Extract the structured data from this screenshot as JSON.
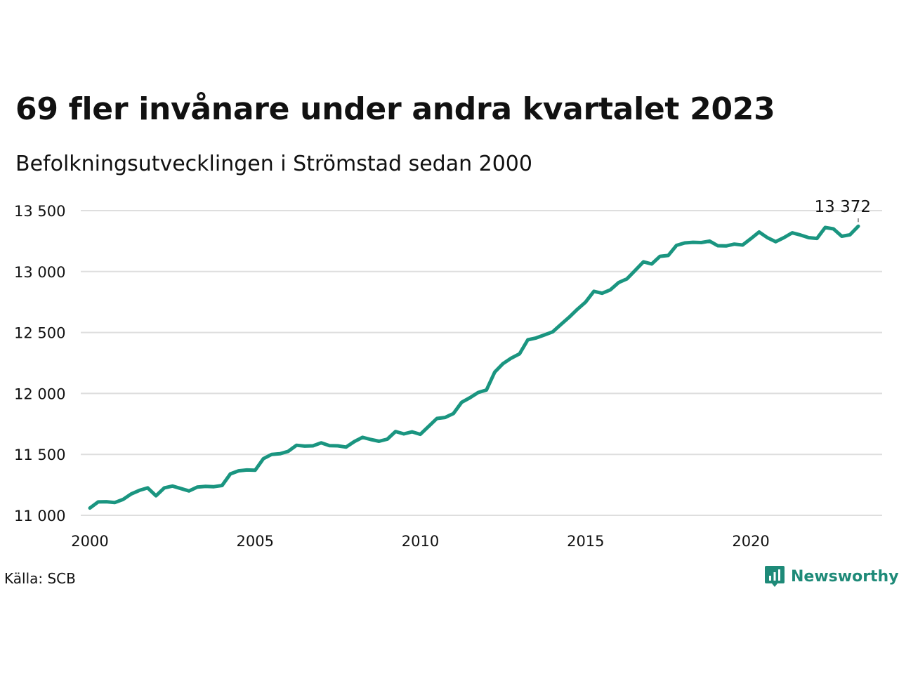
{
  "header": {
    "title": "69 fler invånare under andra kvartalet 2023",
    "subtitle": "Befolkningsutvecklingen i Strömstad sedan 2000"
  },
  "footer": {
    "source": "Källa: SCB",
    "brand": "Newsworthy"
  },
  "colors": {
    "line": "#1a9580",
    "grid": "#dedede",
    "brand": "#1e8a78"
  },
  "chart_data": {
    "type": "line",
    "title": "69 fler invånare under andra kvartalet 2023",
    "subtitle": "Befolkningsutvecklingen i Strömstad sedan 2000",
    "xlabel": "",
    "ylabel": "",
    "xlim": [
      2000,
      2024.2
    ],
    "ylim": [
      11000,
      13500
    ],
    "x_ticks": [
      2000,
      2005,
      2010,
      2015,
      2020
    ],
    "x_tick_labels": [
      "2000",
      "2005",
      "2010",
      "2015",
      "2020"
    ],
    "y_ticks": [
      11000,
      11500,
      12000,
      12500,
      13000,
      13500
    ],
    "y_tick_labels": [
      "11 000",
      "11 500",
      "12 000",
      "12 500",
      "13 000",
      "13 500"
    ],
    "grid": true,
    "end_label": "13 372",
    "series": [
      {
        "x": [
          2000.0,
          2000.25,
          2000.5,
          2000.75,
          2001.0,
          2001.25,
          2001.5,
          2001.75,
          2002.0,
          2002.25,
          2002.5,
          2002.75,
          2003.0,
          2003.25,
          2003.5,
          2003.75,
          2004.0,
          2004.25,
          2004.5,
          2004.75,
          2005.0,
          2005.25,
          2005.5,
          2005.75,
          2006.0,
          2006.25,
          2006.5,
          2006.75,
          2007.0,
          2007.25,
          2007.5,
          2007.75,
          2008.0,
          2008.25,
          2008.5,
          2008.75,
          2009.0,
          2009.25,
          2009.5,
          2009.75,
          2010.0,
          2010.25,
          2010.5,
          2010.75,
          2011.0,
          2011.25,
          2011.5,
          2011.75,
          2012.0,
          2012.25,
          2012.5,
          2012.75,
          2013.0,
          2013.25,
          2013.5,
          2013.75,
          2014.0,
          2014.25,
          2014.5,
          2014.75,
          2015.0,
          2015.25,
          2015.5,
          2015.75,
          2016.0,
          2016.25,
          2016.5,
          2016.75,
          2017.0,
          2017.25,
          2017.5,
          2017.75,
          2018.0,
          2018.25,
          2018.5,
          2018.75,
          2019.0,
          2019.25,
          2019.5,
          2019.75,
          2020.0,
          2020.25,
          2020.5,
          2020.75,
          2021.0,
          2021.25,
          2021.5,
          2021.75,
          2022.0,
          2022.25,
          2022.5,
          2022.75,
          2023.0,
          2023.25
        ],
        "values": [
          11060,
          11110,
          11112,
          11105,
          11130,
          11175,
          11205,
          11225,
          11160,
          11225,
          11240,
          11220,
          11200,
          11232,
          11238,
          11235,
          11245,
          11340,
          11365,
          11372,
          11370,
          11465,
          11500,
          11505,
          11525,
          11575,
          11568,
          11570,
          11595,
          11572,
          11570,
          11560,
          11605,
          11640,
          11622,
          11608,
          11625,
          11688,
          11668,
          11685,
          11665,
          11730,
          11795,
          11803,
          11835,
          11928,
          11965,
          12008,
          12028,
          12175,
          12245,
          12290,
          12325,
          12440,
          12455,
          12480,
          12505,
          12565,
          12625,
          12690,
          12750,
          12838,
          12822,
          12850,
          12910,
          12940,
          13010,
          13080,
          13062,
          13125,
          13132,
          13215,
          13235,
          13240,
          13238,
          13250,
          13212,
          13210,
          13225,
          13218,
          13270,
          13325,
          13278,
          13245,
          13278,
          13318,
          13300,
          13278,
          13272,
          13362,
          13350,
          13290,
          13302,
          13372
        ]
      }
    ]
  }
}
